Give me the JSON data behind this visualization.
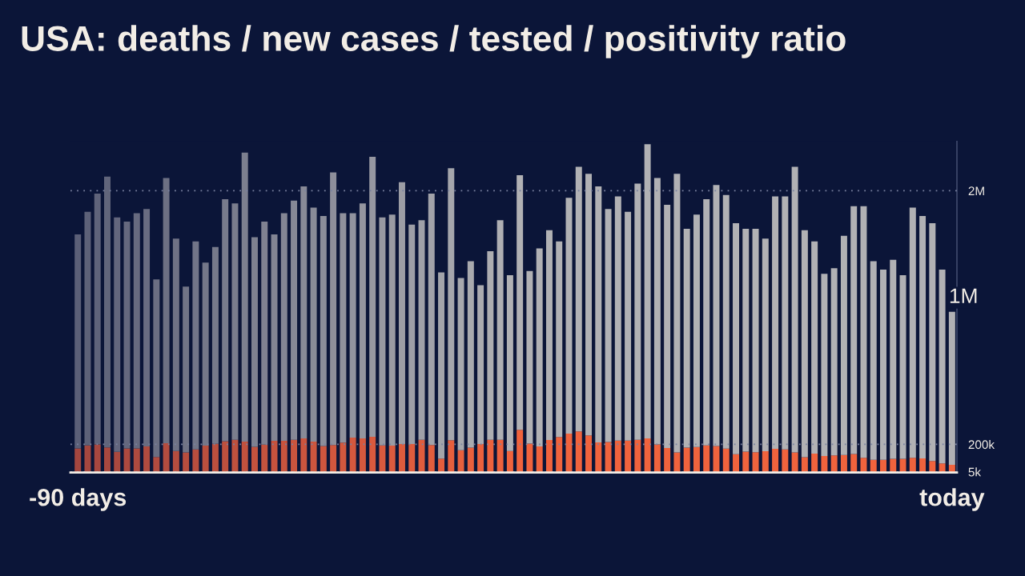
{
  "chart_data": {
    "type": "bar",
    "title": "USA: deaths / new cases / tested / positivity ratio",
    "categories": [
      "-90 days",
      null,
      null,
      null,
      null,
      null,
      null,
      null,
      null,
      null,
      null,
      null,
      null,
      null,
      null,
      null,
      null,
      null,
      null,
      null,
      null,
      null,
      null,
      null,
      null,
      null,
      null,
      null,
      null,
      null,
      null,
      null,
      null,
      null,
      null,
      null,
      null,
      null,
      null,
      null,
      null,
      null,
      null,
      null,
      null,
      null,
      null,
      null,
      null,
      null,
      null,
      null,
      null,
      null,
      null,
      null,
      null,
      null,
      null,
      null,
      null,
      null,
      null,
      null,
      null,
      null,
      null,
      null,
      null,
      null,
      null,
      null,
      null,
      null,
      null,
      null,
      null,
      null,
      null,
      null,
      null,
      null,
      null,
      null,
      null,
      null,
      null,
      null,
      null,
      "today"
    ],
    "stacked": true,
    "series": [
      {
        "values": [
          172000,
          193000,
          200000,
          179000,
          147000,
          172000,
          172000,
          185000,
          111000,
          208000,
          153000,
          143000,
          164000,
          191000,
          204000,
          223000,
          233000,
          219000,
          183000,
          198000,
          225000,
          225000,
          233000,
          242000,
          219000,
          189000,
          195000,
          212000,
          248000,
          242000,
          254000,
          193000,
          191000,
          202000,
          202000,
          233000,
          195000,
          99000,
          229000,
          158000,
          177000,
          202000,
          233000,
          233000,
          153000,
          303000,
          206000,
          185000,
          231000,
          252000,
          277000,
          292000,
          263000,
          214000,
          217000,
          227000,
          227000,
          233000,
          242000,
          200000,
          174000,
          143000,
          177000,
          181000,
          193000,
          189000,
          170000,
          130000,
          149000,
          145000,
          151000,
          168000,
          164000,
          143000,
          109000,
          135000,
          118000,
          122000,
          124000,
          132000,
          105000,
          90000,
          90000,
          97000,
          97000,
          105000,
          101000,
          82000,
          65000,
          55000
        ],
        "colors": [
          "#a4463f",
          "#a6473f",
          "#a7473f",
          "#a9483f",
          "#ab493f",
          "#ad493f",
          "#ae4a3f",
          "#b04b3f",
          "#b24b3f",
          "#b44c3f",
          "#b54d3f",
          "#b74d3e",
          "#b94e3e",
          "#ba4f3e",
          "#bc4f3e",
          "#be503e",
          "#c0513e",
          "#c1513e",
          "#c3523e",
          "#c5533e",
          "#c7533e",
          "#c8543e",
          "#ca553e",
          "#cc553e",
          "#cd563e",
          "#cf563e",
          "#d1573e",
          "#d3583e",
          "#d4583e",
          "#d6593e",
          "#d85a3e",
          "#da5a3e",
          "#db5b3e",
          "#dd5c3d",
          "#df5c3d",
          "#e05d3d",
          "#e25e3d",
          "#e45e3d",
          "#e65f3d",
          "#e7603d",
          "#e9603d",
          "#eb613d",
          "#ed623d",
          "#ee623d",
          "#f0633d",
          "#f0633d",
          "#f0633d",
          "#f0633d",
          "#f0633d",
          "#f0633d",
          "#f0633d",
          "#f0633d",
          "#f0633d",
          "#f0633d",
          "#f0633d",
          "#f0633d",
          "#f0633d",
          "#f0633d",
          "#f0633d",
          "#f0633d",
          "#f0633d",
          "#f0633d",
          "#f0633d",
          "#f0633d",
          "#f0633d",
          "#f0633d",
          "#f0633d",
          "#f0633d",
          "#f0633d",
          "#f0633d",
          "#f0633d",
          "#f0633d",
          "#f0633d",
          "#f0633d",
          "#f0633d",
          "#f0633d",
          "#f0633d",
          "#f0633d",
          "#f0633d",
          "#f0633d",
          "#f0633d",
          "#f0633d",
          "#f0633d",
          "#f0633d",
          "#f0633d",
          "#f0633d",
          "#f0633d",
          "#f0633d",
          "#f0633d",
          "#f0633d"
        ]
      },
      {
        "values": [
          1518000,
          1657000,
          1780000,
          1921000,
          1663000,
          1608000,
          1668000,
          1685000,
          1259000,
          1882000,
          1507000,
          1177000,
          1476000,
          1299000,
          1396000,
          1717000,
          1677000,
          2051000,
          1487000,
          1582000,
          1465000,
          1615000,
          1697000,
          1788000,
          1661000,
          1631000,
          1935000,
          1628000,
          1592000,
          1668000,
          1986000,
          1617000,
          1639000,
          1858000,
          1558000,
          1557000,
          1785000,
          1321000,
          1931000,
          1222000,
          1323000,
          1128000,
          1337000,
          1557000,
          1247000,
          1807000,
          1224000,
          1405000,
          1489000,
          1388000,
          1673000,
          1878000,
          1857000,
          1816000,
          1653000,
          1733000,
          1623000,
          1817000,
          2088000,
          1890000,
          1726000,
          1977000,
          1553000,
          1649000,
          1747000,
          1851000,
          1800000,
          1640000,
          1581000,
          1585000,
          1509000,
          1792000,
          1796000,
          2027000,
          1611000,
          1505000,
          1292000,
          1328000,
          1556000,
          1758000,
          1785000,
          1410000,
          1350000,
          1413000,
          1303000,
          1775000,
          1719000,
          1688000,
          1375000,
          1085000
        ],
        "colors": [
          "#5b5f77",
          "#5d6178",
          "#5f637a",
          "#61657b",
          "#63667d",
          "#65687e",
          "#676a7f",
          "#696c81",
          "#6b6e82",
          "#6d7083",
          "#6f7285",
          "#717486",
          "#727588",
          "#747789",
          "#76798a",
          "#787b8c",
          "#7a7d8d",
          "#7c7f8f",
          "#7e8190",
          "#808291",
          "#828493",
          "#848694",
          "#868896",
          "#888a97",
          "#8a8c98",
          "#8c8e9a",
          "#8e8f9b",
          "#90919c",
          "#92939e",
          "#94959f",
          "#9697a1",
          "#9899a2",
          "#9a9ba3",
          "#9c9da5",
          "#9d9ea6",
          "#9fa0a7",
          "#a1a2a9",
          "#a3a4aa",
          "#a5a6ac",
          "#a7a8ad",
          "#a9aaae",
          "#ababb0",
          "#adadb1",
          "#afafb3",
          "#b1b1b4",
          "#b1b1b4",
          "#b1b1b4",
          "#b1b1b4",
          "#b1b1b4",
          "#b1b1b4",
          "#b1b1b4",
          "#b1b1b4",
          "#b1b1b4",
          "#b1b1b4",
          "#b1b1b4",
          "#b1b1b4",
          "#b1b1b4",
          "#b1b1b4",
          "#b1b1b4",
          "#b1b1b4",
          "#b1b1b4",
          "#b1b1b4",
          "#b1b1b4",
          "#b1b1b4",
          "#b1b1b4",
          "#b1b1b4",
          "#b1b1b4",
          "#b1b1b4",
          "#b1b1b4",
          "#b1b1b4",
          "#b1b1b4",
          "#b1b1b4",
          "#b1b1b4",
          "#b1b1b4",
          "#b1b1b4",
          "#b1b1b4",
          "#b1b1b4",
          "#b1b1b4",
          "#b1b1b4",
          "#b1b1b4",
          "#b1b1b4",
          "#b1b1b4",
          "#b1b1b4",
          "#b1b1b4",
          "#b1b1b4",
          "#b1b1b4",
          "#b1b1b4",
          "#b1b1b4",
          "#b1b1b4",
          "#b1b1b4"
        ],
        "value_labels": [
          null,
          null,
          null,
          null,
          null,
          null,
          null,
          null,
          null,
          null,
          null,
          null,
          null,
          null,
          null,
          null,
          null,
          null,
          null,
          null,
          null,
          null,
          null,
          null,
          null,
          null,
          null,
          null,
          null,
          null,
          null,
          null,
          null,
          null,
          null,
          null,
          null,
          null,
          null,
          null,
          null,
          null,
          null,
          null,
          null,
          null,
          null,
          null,
          null,
          null,
          null,
          null,
          null,
          null,
          null,
          null,
          null,
          null,
          null,
          null,
          null,
          null,
          null,
          null,
          null,
          null,
          null,
          null,
          null,
          null,
          null,
          null,
          null,
          null,
          null,
          null,
          null,
          null,
          null,
          null,
          null,
          null,
          null,
          null,
          null,
          null,
          null,
          null,
          null,
          "1M"
        ]
      }
    ],
    "ylim": [
      0,
      2350000
    ],
    "yticks": [
      {
        "value": 5000,
        "label": "5k"
      },
      {
        "value": 200000,
        "label": "200k"
      },
      {
        "value": 2000000,
        "label": "2M"
      }
    ],
    "grid": "y"
  }
}
